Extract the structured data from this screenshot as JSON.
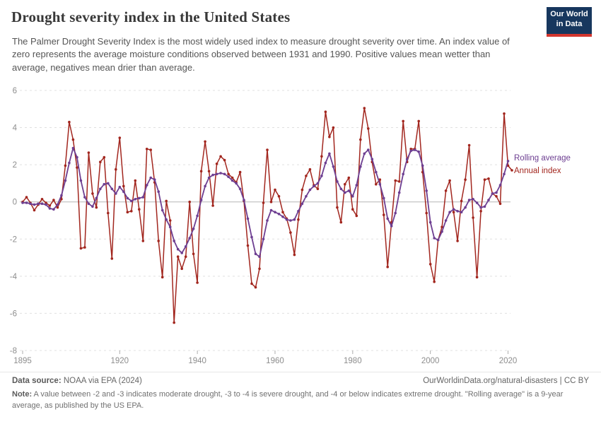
{
  "header": {
    "title": "Drought severity index in the United States",
    "subtitle": "The Palmer Drought Severity Index is the most widely used index to measure drought severity over time. An index value of zero represents the average moisture conditions observed between 1931 and 1990. Positive values mean wetter than average, negatives mean drier than average.",
    "logo": {
      "line1": "Our World",
      "line2": "in Data",
      "bg_color": "#17375e",
      "accent_color": "#d3362e"
    }
  },
  "legend": {
    "rolling_label": "Rolling average",
    "annual_label": "Annual index"
  },
  "footer": {
    "source_prefix": "Data source:",
    "source_value": " NOAA via EPA (2024)",
    "link_text": "OurWorldinData.org/natural-disasters | CC BY",
    "note_prefix": "Note:",
    "note_value": " A value between -2 and -3 indicates moderate drought, -3 to -4 is severe drought, and -4 or below indicates extreme drought. \"Rolling average\" is a 9-year average, as published by the US EPA."
  },
  "chart_data": {
    "type": "line",
    "title": "Drought severity index in the United States",
    "xlabel": "",
    "ylabel": "",
    "ylim": [
      -8,
      6
    ],
    "yticks": [
      6,
      4,
      2,
      0,
      -2,
      -4,
      -6,
      -8
    ],
    "xticks": [
      1895,
      1920,
      1940,
      1960,
      1980,
      2000,
      2020
    ],
    "grid": "horizontal dashed, solid zero line",
    "legend_position": "right end of lines",
    "x": [
      1895,
      1896,
      1897,
      1898,
      1899,
      1900,
      1901,
      1902,
      1903,
      1904,
      1905,
      1906,
      1907,
      1908,
      1909,
      1910,
      1911,
      1912,
      1913,
      1914,
      1915,
      1916,
      1917,
      1918,
      1919,
      1920,
      1921,
      1922,
      1923,
      1924,
      1925,
      1926,
      1927,
      1928,
      1929,
      1930,
      1931,
      1932,
      1933,
      1934,
      1935,
      1936,
      1937,
      1938,
      1939,
      1940,
      1941,
      1942,
      1943,
      1944,
      1945,
      1946,
      1947,
      1948,
      1949,
      1950,
      1951,
      1952,
      1953,
      1954,
      1955,
      1956,
      1957,
      1958,
      1959,
      1960,
      1961,
      1962,
      1963,
      1964,
      1965,
      1966,
      1967,
      1968,
      1969,
      1970,
      1971,
      1972,
      1973,
      1974,
      1975,
      1976,
      1977,
      1978,
      1979,
      1980,
      1981,
      1982,
      1983,
      1984,
      1985,
      1986,
      1987,
      1988,
      1989,
      1990,
      1991,
      1992,
      1993,
      1994,
      1995,
      1996,
      1997,
      1998,
      1999,
      2000,
      2001,
      2002,
      2003,
      2004,
      2005,
      2006,
      2007,
      2008,
      2009,
      2010,
      2011,
      2012,
      2013,
      2014,
      2015,
      2016,
      2017,
      2018,
      2019,
      2020,
      2021
    ],
    "series": [
      {
        "name": "Annual index",
        "color": "#a2261e",
        "values": [
          0.0,
          0.25,
          -0.05,
          -0.45,
          -0.15,
          0.15,
          -0.05,
          -0.2,
          0.1,
          -0.3,
          0.15,
          1.95,
          4.3,
          3.35,
          1.85,
          -2.5,
          -2.45,
          2.65,
          0.45,
          -0.3,
          2.15,
          2.4,
          -0.6,
          -3.05,
          1.75,
          3.45,
          0.85,
          -0.55,
          -0.5,
          1.15,
          -0.4,
          -2.1,
          2.85,
          2.8,
          1.05,
          -2.1,
          -4.05,
          0.05,
          -1.0,
          -6.5,
          -2.95,
          -3.6,
          -2.95,
          0.0,
          -2.8,
          -4.35,
          1.65,
          3.25,
          1.65,
          -0.2,
          2.05,
          2.45,
          2.25,
          1.5,
          1.3,
          1.05,
          1.6,
          0.05,
          -2.35,
          -4.4,
          -4.6,
          -3.6,
          -0.05,
          2.8,
          0.0,
          0.65,
          0.3,
          -0.55,
          -0.9,
          -1.65,
          -2.85,
          -0.95,
          0.65,
          1.4,
          1.75,
          0.9,
          0.7,
          2.45,
          4.85,
          3.5,
          4.0,
          -0.3,
          -1.1,
          0.95,
          1.3,
          -0.4,
          -0.75,
          3.35,
          5.05,
          3.95,
          2.15,
          0.95,
          1.2,
          -0.7,
          -3.5,
          -1.1,
          1.15,
          1.1,
          4.35,
          2.15,
          2.85,
          2.85,
          4.35,
          1.6,
          -0.6,
          -3.35,
          -4.3,
          -2.05,
          -1.35,
          0.6,
          1.15,
          -0.55,
          -2.1,
          0.05,
          1.2,
          3.05,
          -0.85,
          -4.05,
          -0.5,
          1.2,
          1.25,
          0.45,
          0.3,
          -0.1,
          4.75,
          1.95,
          1.7
        ]
      },
      {
        "name": "Rolling average",
        "color": "#6d3e91",
        "values": [
          -0.05,
          -0.05,
          -0.1,
          -0.15,
          -0.1,
          -0.1,
          -0.15,
          -0.35,
          -0.4,
          -0.15,
          0.35,
          1.15,
          2.1,
          2.9,
          2.4,
          1.15,
          0.25,
          -0.1,
          -0.25,
          0.2,
          0.7,
          0.95,
          1.0,
          0.7,
          0.45,
          0.8,
          0.55,
          0.2,
          0.05,
          0.15,
          0.2,
          0.25,
          0.9,
          1.3,
          1.2,
          0.55,
          -0.45,
          -0.95,
          -1.35,
          -2.1,
          -2.55,
          -2.75,
          -2.4,
          -1.95,
          -1.45,
          -0.75,
          0.1,
          0.85,
          1.3,
          1.45,
          1.5,
          1.55,
          1.5,
          1.35,
          1.15,
          1.0,
          0.7,
          0.1,
          -0.9,
          -1.9,
          -2.8,
          -2.95,
          -2.0,
          -1.0,
          -0.45,
          -0.55,
          -0.65,
          -0.8,
          -0.95,
          -1.0,
          -0.95,
          -0.5,
          -0.1,
          0.3,
          0.65,
          0.85,
          1.0,
          1.4,
          2.1,
          2.6,
          1.9,
          1.1,
          0.7,
          0.5,
          0.6,
          0.3,
          0.9,
          1.9,
          2.6,
          2.8,
          2.3,
          1.6,
          0.95,
          0.2,
          -0.9,
          -1.3,
          -0.6,
          0.5,
          1.5,
          2.3,
          2.75,
          2.8,
          2.7,
          1.95,
          0.6,
          -1.1,
          -1.95,
          -2.05,
          -1.6,
          -1.0,
          -0.55,
          -0.4,
          -0.5,
          -0.55,
          -0.3,
          0.1,
          0.15,
          -0.05,
          -0.3,
          -0.25,
          0.1,
          0.45,
          0.5,
          0.9,
          1.5,
          2.2,
          null
        ]
      }
    ]
  }
}
